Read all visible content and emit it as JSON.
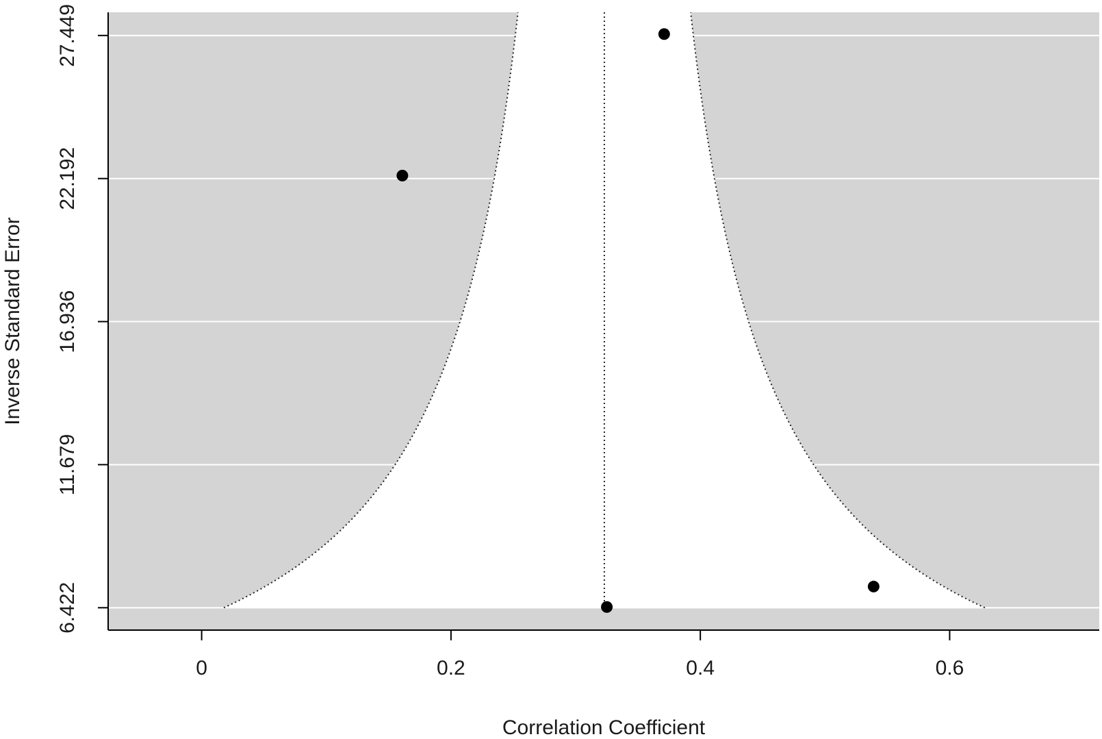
{
  "chart_data": {
    "type": "scatter",
    "subtype": "contour-enhanced funnel plot",
    "title": "",
    "xlabel": "Correlation Coefficient",
    "ylabel": "Inverse Standard Error",
    "xlim": [
      -0.075,
      0.72
    ],
    "ylim": [
      5.6,
      28.3
    ],
    "xticks": [
      0,
      0.2,
      0.4,
      0.6
    ],
    "xtick_labels": [
      "0",
      "0.2",
      "0.4",
      "0.6"
    ],
    "yticks": [
      6.422,
      11.679,
      16.936,
      22.192,
      27.449
    ],
    "ytick_labels": [
      "6.422",
      "11.679",
      "16.936",
      "22.192",
      "27.449"
    ],
    "gridlines": "horizontal at y ticks (white)",
    "region_color": "#d4d4d4",
    "background_color": "#ffffff",
    "point_color": "#000000",
    "reference_line": {
      "x": 0.323,
      "style": "dotted"
    },
    "funnel": {
      "center": 0.323,
      "z": 1.96,
      "style": "dotted"
    },
    "points": [
      {
        "x": 0.161,
        "y": 22.3
      },
      {
        "x": 0.371,
        "y": 27.5
      },
      {
        "x": 0.325,
        "y": 6.45
      },
      {
        "x": 0.539,
        "y": 7.2
      }
    ]
  }
}
